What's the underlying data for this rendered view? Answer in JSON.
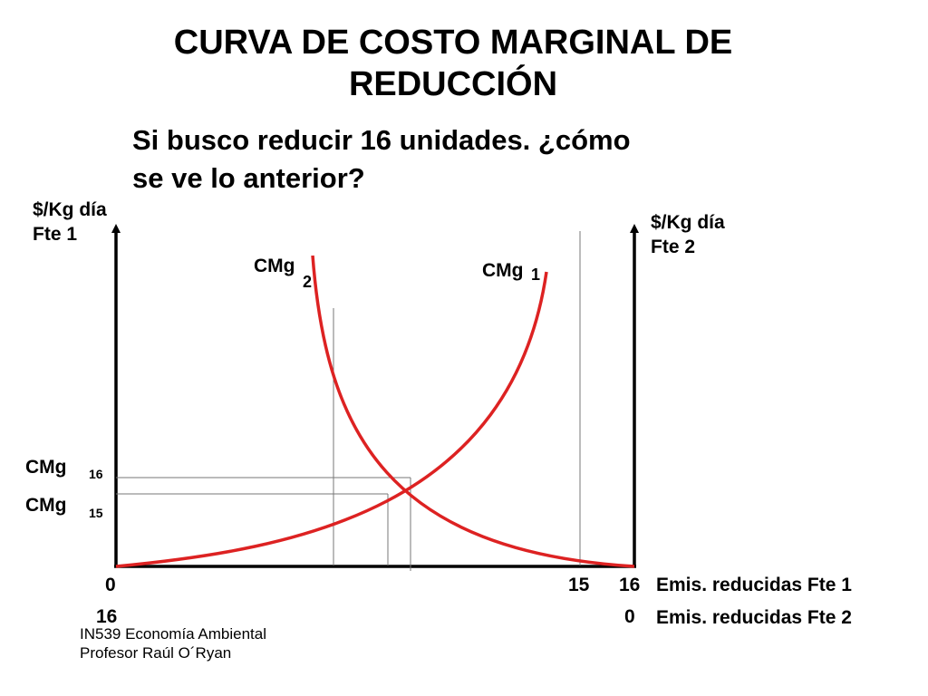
{
  "title_line1": "CURVA DE COSTO MARGINAL DE",
  "title_line2": "REDUCCIÓN",
  "subtitle_line1": "Si busco reducir 16 unidades. ¿cómo",
  "subtitle_line2": "se ve lo anterior?",
  "left_axis": {
    "line1": "$/Kg día",
    "line2": "Fte 1"
  },
  "right_axis": {
    "line1": "$/Kg día",
    "line2": "Fte 2"
  },
  "curve2": {
    "label": "CMg",
    "subscript": "2"
  },
  "curve1": {
    "label": "CMg",
    "subscript": "1"
  },
  "cmg16": {
    "label": "CMg",
    "subscript": "16"
  },
  "cmg15": {
    "label": "CMg",
    "subscript": "15"
  },
  "bottom_left": {
    "top": "0",
    "bottom": "16"
  },
  "bottom_right": {
    "mid": "15",
    "top": "16",
    "bottom": "0"
  },
  "xaxis_label_1": "Emis. reducidas Fte 1",
  "xaxis_label_2": "Emis. reducidas Fte 2",
  "footer": {
    "line1": "IN539 Economía Ambiental",
    "line2": "Profesor Raúl O´Ryan"
  },
  "colors": {
    "curve": "#dd2222",
    "axis": "#000000"
  }
}
